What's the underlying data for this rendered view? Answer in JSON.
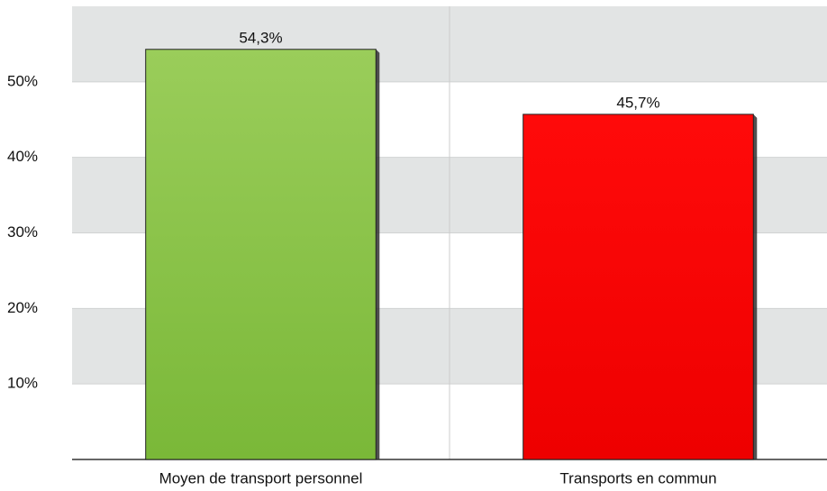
{
  "chart_data": {
    "type": "bar",
    "categories": [
      "Moyen de transport personnel",
      "Transports en commun"
    ],
    "values": [
      54.3,
      45.7
    ],
    "value_labels": [
      "54,3%",
      "45,7%"
    ],
    "colors": [
      "#7ab838",
      "#ee0000"
    ],
    "ylim": [
      0,
      60
    ],
    "yticks": [
      {
        "value": 10,
        "label": "10%"
      },
      {
        "value": 20,
        "label": "20%"
      },
      {
        "value": 30,
        "label": "30%"
      },
      {
        "value": 40,
        "label": "40%"
      },
      {
        "value": 50,
        "label": "50%"
      }
    ],
    "grid": true
  }
}
